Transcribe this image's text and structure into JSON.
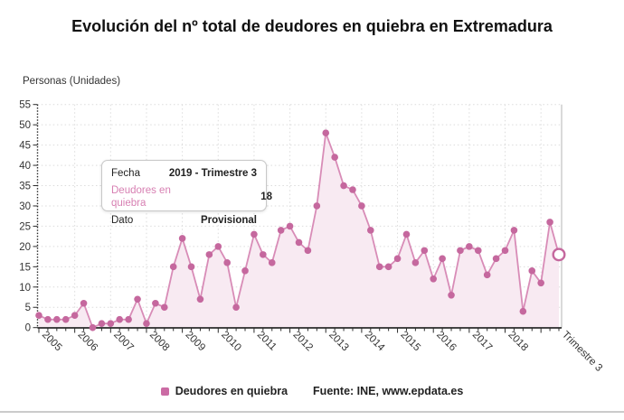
{
  "header": {
    "title": "Evolución del nº total de deudores en quiebra en Extremadura"
  },
  "y_axis_unit_label": "Personas (Unidades)",
  "tooltip": {
    "rows": [
      {
        "label": "Fecha",
        "value": "2019 - Trimestre 3"
      },
      {
        "label": "Deudores en quiebra",
        "value": "18"
      },
      {
        "label": "Dato",
        "value": "Provisional"
      }
    ]
  },
  "footer": {
    "legend_label": "Deudores en quiebra",
    "source": "Fuente: INE, www.epdata.es"
  },
  "colors": {
    "point": "#c5689e",
    "line": "#d88cb7",
    "area_fill": "#f8eaf2",
    "grid": "#dcdcdc",
    "axis": "#2b2b2b",
    "plot_right_border": "#c2c2c2",
    "tooltip_accent": "#d77fb2",
    "legend_swatch": "#cb6ba4",
    "text": "#333333"
  },
  "chart_data": {
    "type": "line",
    "title": "Evolución del nº total de deudores en quiebra en Extremadura",
    "ylabel": "Personas (Unidades)",
    "xlabel": "",
    "ylim": [
      0,
      55
    ],
    "y_tick_interval": 5,
    "grid": true,
    "legend_position": "bottom",
    "legend": [
      "Deudores en quiebra"
    ],
    "quarters": [
      "2005-T1",
      "2005-T2",
      "2005-T3",
      "2005-T4",
      "2006-T1",
      "2006-T2",
      "2006-T3",
      "2006-T4",
      "2007-T1",
      "2007-T2",
      "2007-T3",
      "2007-T4",
      "2008-T1",
      "2008-T2",
      "2008-T3",
      "2008-T4",
      "2009-T1",
      "2009-T2",
      "2009-T3",
      "2009-T4",
      "2010-T1",
      "2010-T2",
      "2010-T3",
      "2010-T4",
      "2011-T1",
      "2011-T2",
      "2011-T3",
      "2011-T4",
      "2012-T1",
      "2012-T2",
      "2012-T3",
      "2012-T4",
      "2013-T1",
      "2013-T2",
      "2013-T3",
      "2013-T4",
      "2014-T1",
      "2014-T2",
      "2014-T3",
      "2014-T4",
      "2015-T1",
      "2015-T2",
      "2015-T3",
      "2015-T4",
      "2016-T1",
      "2016-T2",
      "2016-T3",
      "2016-T4",
      "2017-T1",
      "2017-T2",
      "2017-T3",
      "2017-T4",
      "2018-T1",
      "2018-T2",
      "2018-T3",
      "2018-T4",
      "2019-T1",
      "2019-T2",
      "2019-T3"
    ],
    "values": [
      3,
      2,
      2,
      2,
      3,
      6,
      0,
      1,
      1,
      2,
      2,
      7,
      1,
      6,
      5,
      15,
      22,
      15,
      7,
      18,
      20,
      16,
      5,
      14,
      23,
      18,
      16,
      24,
      25,
      21,
      19,
      30,
      48,
      42,
      35,
      34,
      30,
      24,
      15,
      15,
      17,
      23,
      16,
      19,
      12,
      17,
      8,
      19,
      20,
      19,
      13,
      17,
      19,
      24,
      4,
      14,
      11,
      26,
      18
    ],
    "highlight_index": 58,
    "highlight_value": 18,
    "x_ticks": [
      {
        "i": 0,
        "label": "2005"
      },
      {
        "i": 4,
        "label": "2006"
      },
      {
        "i": 8,
        "label": "2007"
      },
      {
        "i": 12,
        "label": "2008"
      },
      {
        "i": 16,
        "label": "2009"
      },
      {
        "i": 20,
        "label": "2010"
      },
      {
        "i": 24,
        "label": "2011"
      },
      {
        "i": 28,
        "label": "2012"
      },
      {
        "i": 32,
        "label": "2013"
      },
      {
        "i": 36,
        "label": "2014"
      },
      {
        "i": 40,
        "label": "2015"
      },
      {
        "i": 44,
        "label": "2016"
      },
      {
        "i": 48,
        "label": "2017"
      },
      {
        "i": 52,
        "label": "2018"
      },
      {
        "i": 58,
        "label": "Trimestre 3"
      }
    ]
  }
}
